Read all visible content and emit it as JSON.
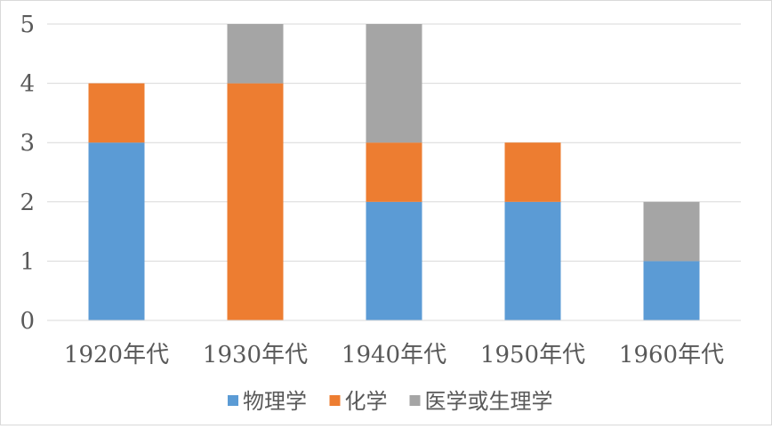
{
  "chart_data": {
    "type": "bar",
    "stacked": true,
    "categories": [
      "1920年代",
      "1930年代",
      "1940年代",
      "1950年代",
      "1960年代"
    ],
    "series": [
      {
        "name": "物理学",
        "values": [
          3,
          0,
          2,
          2,
          1
        ],
        "color": "#5b9bd5"
      },
      {
        "name": "化学",
        "values": [
          1,
          4,
          1,
          1,
          0
        ],
        "color": "#ed7d31"
      },
      {
        "name": "医学或生理学",
        "values": [
          0,
          1,
          2,
          0,
          1
        ],
        "color": "#a5a5a5"
      }
    ],
    "ylim": [
      0,
      5
    ],
    "yticks": [
      0,
      1,
      2,
      3,
      4,
      5
    ],
    "grid": true,
    "legend_position": "bottom"
  }
}
